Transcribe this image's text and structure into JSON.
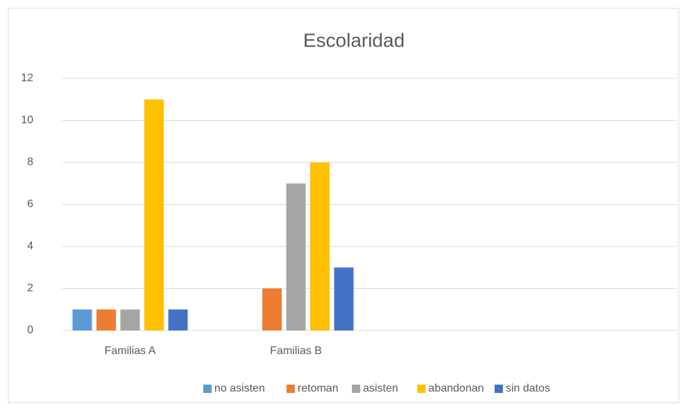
{
  "chart_data": {
    "type": "bar",
    "title": "Escolaridad",
    "categories": [
      "Familias A",
      "Familias B"
    ],
    "series": [
      {
        "name": "no asisten",
        "color": "#5B9BD5",
        "values": [
          1,
          0
        ]
      },
      {
        "name": "retoman",
        "color": "#ED7D31",
        "values": [
          1,
          2
        ]
      },
      {
        "name": "asisten",
        "color": "#A5A5A5",
        "values": [
          1,
          7
        ]
      },
      {
        "name": "abandonan",
        "color": "#FFC000",
        "values": [
          11,
          8
        ]
      },
      {
        "name": "sin datos",
        "color": "#4472C4",
        "values": [
          1,
          3
        ]
      }
    ],
    "ylim": [
      0,
      12
    ],
    "yticks": [
      0,
      2,
      4,
      6,
      8,
      10,
      12
    ],
    "grid": true,
    "legend": "bottom"
  }
}
